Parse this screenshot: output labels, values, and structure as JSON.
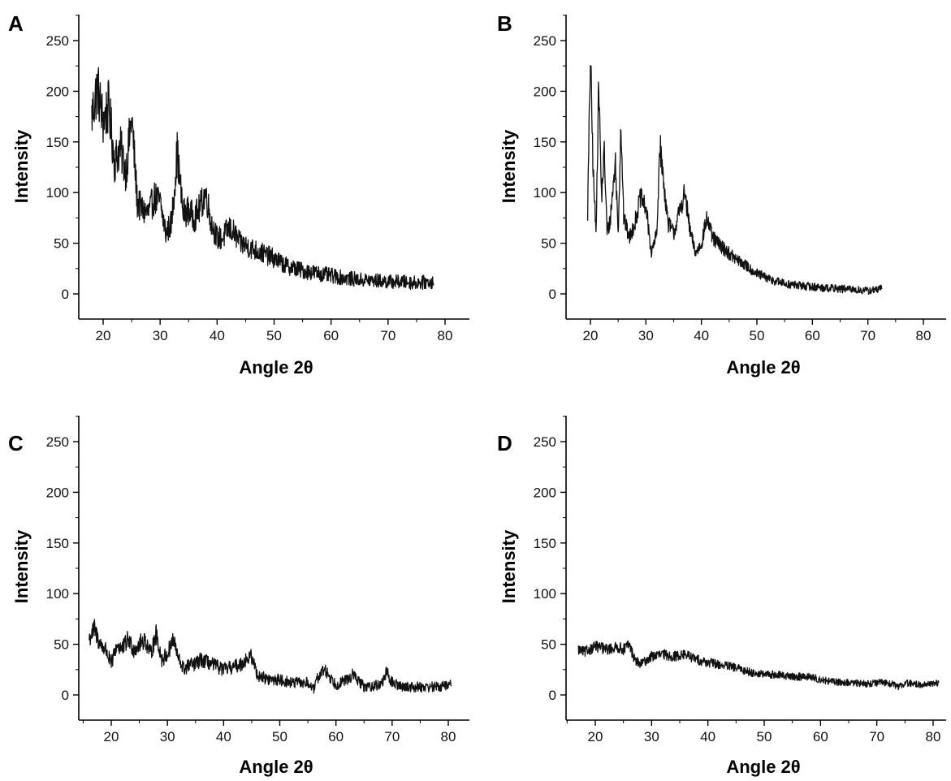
{
  "figure": {
    "background": "#ffffff",
    "trace_color": "#111111"
  },
  "chart_data": [
    {
      "panel": "A",
      "type": "line",
      "xlabel": "Angle 2θ",
      "ylabel": "Intensity",
      "xlim": [
        15,
        84
      ],
      "ylim": [
        -25,
        275
      ],
      "xticks": [
        20,
        30,
        40,
        50,
        60,
        70,
        80
      ],
      "yticks": [
        0,
        50,
        100,
        150,
        200,
        250
      ],
      "grid": false,
      "noise": 14,
      "x": [
        18,
        19,
        20,
        21,
        22,
        23,
        24,
        25,
        26,
        27,
        28,
        29,
        30,
        31,
        32,
        33,
        34,
        35,
        36,
        37,
        38,
        39,
        40,
        41,
        42,
        43,
        44,
        45,
        46,
        48,
        50,
        52,
        55,
        58,
        60,
        62,
        65,
        68,
        70,
        72,
        75,
        78
      ],
      "y": [
        175,
        205,
        170,
        185,
        130,
        145,
        120,
        175,
        90,
        82,
        80,
        95,
        90,
        60,
        70,
        140,
        80,
        82,
        75,
        85,
        100,
        70,
        55,
        55,
        65,
        60,
        50,
        48,
        45,
        40,
        35,
        28,
        23,
        20,
        18,
        16,
        14,
        13,
        12,
        12,
        11,
        12
      ]
    },
    {
      "panel": "B",
      "type": "line",
      "xlabel": "Angle 2θ",
      "ylabel": "Intensity",
      "xlim": [
        15,
        84
      ],
      "ylim": [
        -25,
        275
      ],
      "xticks": [
        20,
        30,
        40,
        50,
        60,
        70,
        80
      ],
      "yticks": [
        0,
        50,
        100,
        150,
        200,
        250
      ],
      "grid": false,
      "noise": 9,
      "x": [
        19.5,
        20,
        20.5,
        21,
        21.5,
        22,
        22.5,
        23,
        23.5,
        24,
        24.5,
        25,
        25.5,
        26,
        27,
        28,
        29,
        30,
        31,
        32,
        32.5,
        33,
        34,
        35,
        36,
        37,
        38,
        39,
        40,
        41,
        42,
        44,
        46,
        48,
        50,
        52,
        55,
        58,
        60,
        62,
        65,
        68,
        70,
        72.5
      ],
      "y": [
        80,
        235,
        120,
        60,
        210,
        95,
        140,
        60,
        70,
        100,
        130,
        60,
        170,
        75,
        55,
        70,
        95,
        85,
        40,
        60,
        150,
        120,
        70,
        60,
        80,
        100,
        60,
        40,
        50,
        75,
        55,
        45,
        35,
        28,
        20,
        15,
        10,
        8,
        7,
        6,
        5,
        4,
        3,
        5
      ]
    },
    {
      "panel": "C",
      "type": "line",
      "xlabel": "Angle 2θ",
      "ylabel": "Intensity",
      "xlim": [
        15,
        83
      ],
      "ylim": [
        -25,
        275
      ],
      "xticks": [
        20,
        30,
        40,
        50,
        60,
        70,
        80
      ],
      "yticks": [
        0,
        50,
        100,
        150,
        200,
        250
      ],
      "grid": false,
      "noise": 11,
      "x": [
        16,
        17,
        18,
        19,
        20,
        21,
        22,
        23,
        24,
        25,
        26,
        27,
        28,
        29,
        30,
        31,
        32,
        33,
        34,
        35,
        36,
        38,
        40,
        42,
        43,
        44,
        45,
        46,
        48,
        50,
        52,
        55,
        56,
        57,
        58,
        60,
        62,
        63,
        65,
        68,
        69,
        70,
        72,
        75,
        78,
        80.5
      ],
      "y": [
        55,
        65,
        50,
        45,
        30,
        50,
        45,
        55,
        45,
        50,
        55,
        40,
        60,
        35,
        40,
        55,
        35,
        25,
        30,
        30,
        35,
        30,
        25,
        28,
        30,
        35,
        38,
        20,
        15,
        15,
        12,
        12,
        5,
        20,
        25,
        10,
        15,
        20,
        8,
        10,
        22,
        12,
        8,
        8,
        8,
        10
      ]
    },
    {
      "panel": "D",
      "type": "line",
      "xlabel": "Angle 2θ",
      "ylabel": "Intensity",
      "xlim": [
        15,
        83
      ],
      "ylim": [
        -25,
        275
      ],
      "xticks": [
        20,
        30,
        40,
        50,
        60,
        70,
        80
      ],
      "yticks": [
        0,
        50,
        100,
        150,
        200,
        250
      ],
      "grid": false,
      "noise": 7,
      "x": [
        17,
        18,
        20,
        22,
        24,
        25,
        26,
        27,
        28,
        30,
        32,
        34,
        36,
        38,
        40,
        42,
        44,
        46,
        48,
        50,
        52,
        55,
        58,
        60,
        62,
        65,
        68,
        70,
        72,
        74,
        75,
        78,
        81
      ],
      "y": [
        45,
        42,
        48,
        45,
        47,
        45,
        50,
        35,
        30,
        38,
        40,
        38,
        40,
        35,
        32,
        30,
        28,
        25,
        22,
        20,
        20,
        18,
        18,
        15,
        13,
        12,
        11,
        12,
        12,
        8,
        12,
        10,
        12
      ]
    }
  ],
  "panels_text": [
    {
      "letter": "A",
      "ylabel": "Intensity",
      "xlabel": "Angle 2θ",
      "xticks": [
        "20",
        "30",
        "40",
        "50",
        "60",
        "70",
        "80"
      ],
      "yticks": [
        "0",
        "50",
        "100",
        "150",
        "200",
        "250"
      ]
    },
    {
      "letter": "B",
      "ylabel": "Intensity",
      "xlabel": "Angle 2θ",
      "xticks": [
        "20",
        "30",
        "40",
        "50",
        "60",
        "70",
        "80"
      ],
      "yticks": [
        "0",
        "50",
        "100",
        "150",
        "200",
        "250"
      ]
    },
    {
      "letter": "C",
      "ylabel": "Intensity",
      "xlabel": "Angle 2θ",
      "xticks": [
        "20",
        "30",
        "40",
        "50",
        "60",
        "70",
        "80"
      ],
      "yticks": [
        "0",
        "50",
        "100",
        "150",
        "200",
        "250"
      ]
    },
    {
      "letter": "D",
      "ylabel": "Intensity",
      "xlabel": "Angle 2θ",
      "xticks": [
        "20",
        "30",
        "40",
        "50",
        "60",
        "70",
        "80"
      ],
      "yticks": [
        "0",
        "50",
        "100",
        "150",
        "200",
        "250"
      ]
    }
  ]
}
